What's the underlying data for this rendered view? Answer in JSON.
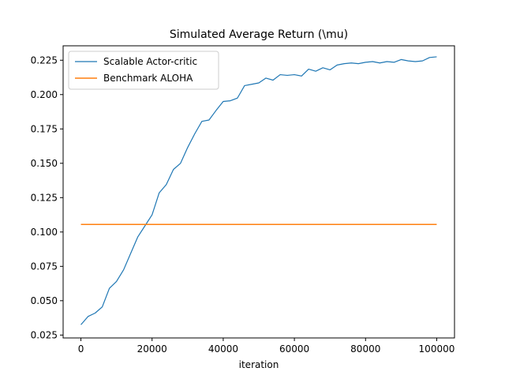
{
  "chart_data": {
    "type": "line",
    "title": "Simulated Average Return (\\mu)",
    "xlabel": "iteration",
    "ylabel": "",
    "xlim": [
      -5000,
      105000
    ],
    "ylim": [
      0.0229,
      0.2355
    ],
    "xticks": [
      0,
      20000,
      40000,
      60000,
      80000,
      100000
    ],
    "xtick_labels": [
      "0",
      "20000",
      "40000",
      "60000",
      "80000",
      "100000"
    ],
    "yticks": [
      0.025,
      0.05,
      0.075,
      0.1,
      0.125,
      0.15,
      0.175,
      0.2,
      0.225
    ],
    "ytick_labels": [
      "0.025",
      "0.050",
      "0.075",
      "0.100",
      "0.125",
      "0.150",
      "0.175",
      "0.200",
      "0.225"
    ],
    "grid": false,
    "legend_position": "top-left",
    "series": [
      {
        "name": "Scalable Actor-critic",
        "color": "#1f77b4",
        "x": [
          0,
          2000,
          4000,
          6000,
          8000,
          10000,
          12000,
          14000,
          16000,
          18000,
          20000,
          22000,
          24000,
          26000,
          28000,
          30000,
          32000,
          34000,
          36000,
          38000,
          40000,
          42000,
          44000,
          46000,
          48000,
          50000,
          52000,
          54000,
          56000,
          58000,
          60000,
          62000,
          64000,
          66000,
          68000,
          70000,
          72000,
          74000,
          76000,
          78000,
          80000,
          82000,
          84000,
          86000,
          88000,
          90000,
          92000,
          94000,
          96000,
          98000,
          100000
        ],
        "y": [
          0.0325,
          0.0385,
          0.041,
          0.0455,
          0.059,
          0.064,
          0.0725,
          0.0845,
          0.0965,
          0.1045,
          0.1125,
          0.1285,
          0.1345,
          0.1455,
          0.15,
          0.1615,
          0.1715,
          0.1805,
          0.1815,
          0.1885,
          0.195,
          0.1955,
          0.1975,
          0.2065,
          0.2075,
          0.2085,
          0.212,
          0.2105,
          0.2145,
          0.214,
          0.2145,
          0.2135,
          0.2185,
          0.217,
          0.2195,
          0.218,
          0.2215,
          0.2225,
          0.223,
          0.2225,
          0.2235,
          0.224,
          0.223,
          0.224,
          0.2235,
          0.2255,
          0.2245,
          0.224,
          0.2245,
          0.227,
          0.2275
        ]
      },
      {
        "name": "Benchmark ALOHA",
        "color": "#ff7f0e",
        "x": [
          0,
          100000
        ],
        "y": [
          0.1055,
          0.1055
        ]
      }
    ]
  }
}
